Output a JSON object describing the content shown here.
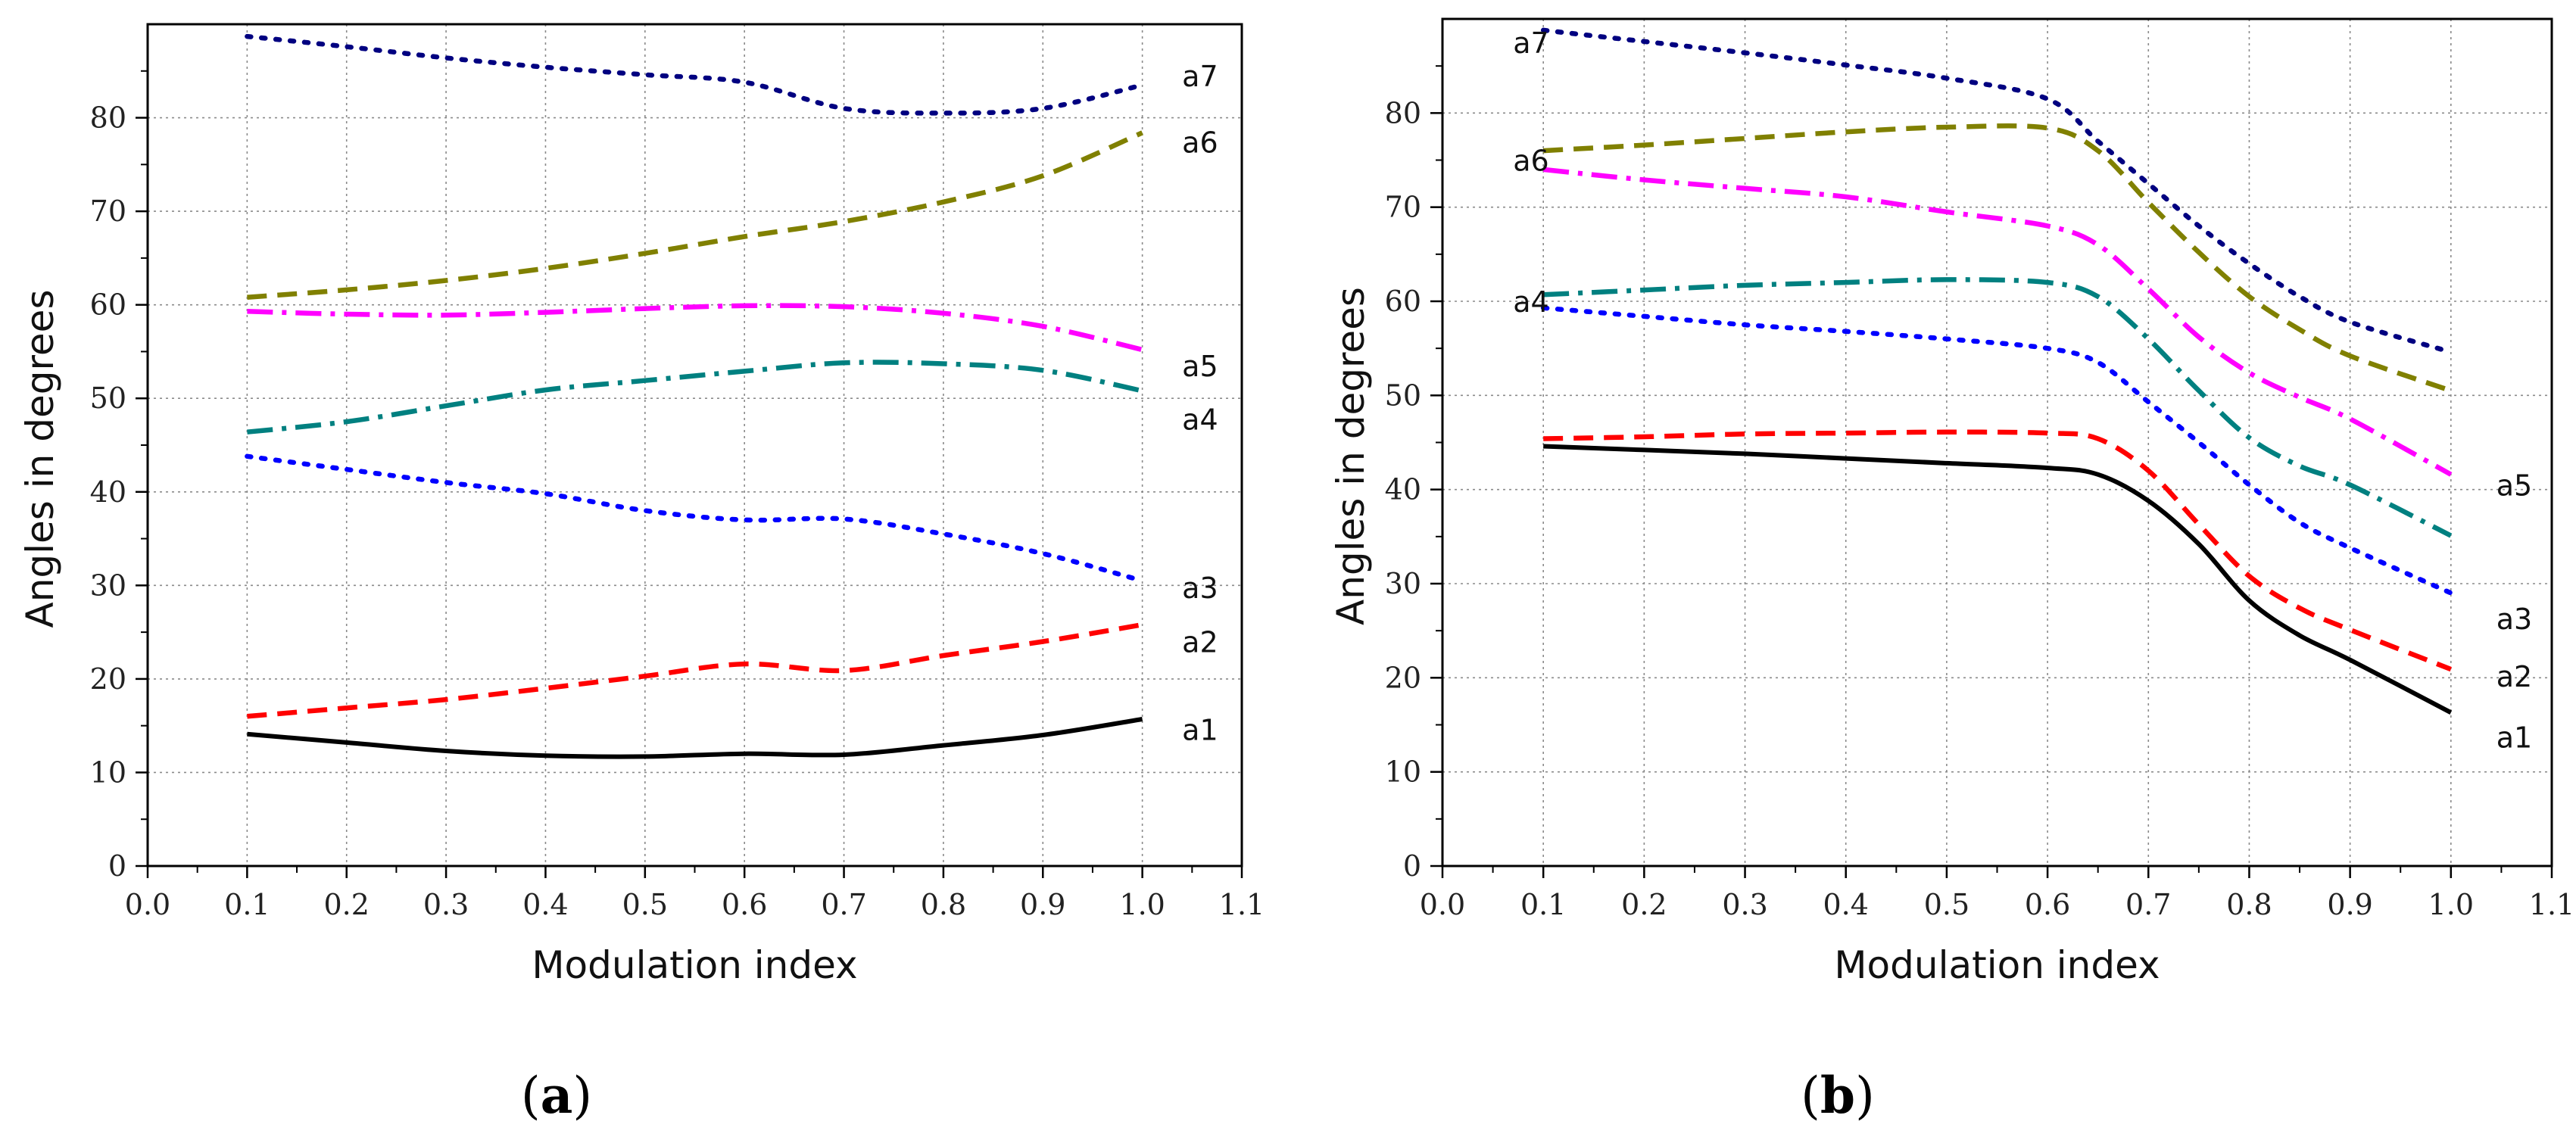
{
  "chart_data": [
    {
      "type": "line",
      "panel": "a",
      "xlabel": "Modulation index",
      "ylabel": "Angles in degrees",
      "xlim": [
        0.0,
        1.1
      ],
      "ylim": [
        0,
        90
      ],
      "xticks": [
        "0.0",
        "0.1",
        "0.2",
        "0.3",
        "0.4",
        "0.5",
        "0.6",
        "0.7",
        "0.8",
        "0.9",
        "1.0",
        "1.1"
      ],
      "yticks": [
        "0",
        "10",
        "20",
        "30",
        "40",
        "50",
        "60",
        "70",
        "80"
      ],
      "grid": true,
      "series": [
        {
          "name": "a1",
          "color": "#000000",
          "style": "solid",
          "x": [
            0.1,
            0.2,
            0.3,
            0.4,
            0.5,
            0.6,
            0.7,
            0.8,
            0.9,
            1.0
          ],
          "y": [
            14.1,
            13.2,
            12.3,
            11.8,
            11.7,
            12.0,
            11.9,
            12.9,
            14.0,
            15.7
          ]
        },
        {
          "name": "a2",
          "color": "#ff0000",
          "style": "dash",
          "x": [
            0.1,
            0.2,
            0.3,
            0.4,
            0.5,
            0.6,
            0.7,
            0.8,
            0.9,
            1.0
          ],
          "y": [
            16.0,
            16.9,
            17.8,
            19.0,
            20.3,
            21.6,
            20.9,
            22.5,
            24.0,
            25.8
          ]
        },
        {
          "name": "a3",
          "color": "#0000ff",
          "style": "dot",
          "x": [
            0.1,
            0.2,
            0.3,
            0.4,
            0.5,
            0.6,
            0.7,
            0.8,
            0.9,
            1.0
          ],
          "y": [
            43.8,
            42.4,
            41.0,
            39.8,
            38.0,
            37.0,
            37.1,
            35.5,
            33.4,
            30.5
          ]
        },
        {
          "name": "a4",
          "color": "#008080",
          "style": "dashdot",
          "x": [
            0.1,
            0.2,
            0.3,
            0.4,
            0.5,
            0.6,
            0.7,
            0.8,
            0.9,
            1.0
          ],
          "y": [
            46.4,
            47.5,
            49.2,
            50.9,
            51.9,
            52.9,
            53.8,
            53.7,
            53.0,
            50.8
          ]
        },
        {
          "name": "a5",
          "color": "#ff00ff",
          "style": "dashdot",
          "x": [
            0.1,
            0.2,
            0.3,
            0.4,
            0.5,
            0.6,
            0.7,
            0.8,
            0.9,
            1.0
          ],
          "y": [
            59.3,
            59.0,
            58.9,
            59.2,
            59.6,
            59.9,
            59.8,
            59.1,
            57.7,
            55.2
          ]
        },
        {
          "name": "a6",
          "color": "#808000",
          "style": "dash",
          "x": [
            0.1,
            0.2,
            0.3,
            0.4,
            0.5,
            0.6,
            0.7,
            0.8,
            0.9,
            1.0
          ],
          "y": [
            60.8,
            61.6,
            62.6,
            63.9,
            65.5,
            67.3,
            68.9,
            71.0,
            73.8,
            78.4
          ]
        },
        {
          "name": "a7",
          "color": "#000080",
          "style": "dot",
          "x": [
            0.1,
            0.2,
            0.3,
            0.4,
            0.5,
            0.6,
            0.7,
            0.8,
            0.9,
            1.0
          ],
          "y": [
            88.7,
            87.6,
            86.4,
            85.4,
            84.6,
            83.8,
            81.0,
            80.5,
            81.0,
            83.5
          ]
        }
      ],
      "annotations": [
        {
          "text": "a7",
          "x": 1.04,
          "y": 84.5
        },
        {
          "text": "a6",
          "x": 1.04,
          "y": 77.4
        },
        {
          "text": "a5",
          "x": 1.04,
          "y": 53.5
        },
        {
          "text": "a4",
          "x": 1.04,
          "y": 47.8
        },
        {
          "text": "a3",
          "x": 1.04,
          "y": 29.8
        },
        {
          "text": "a2",
          "x": 1.04,
          "y": 24.0
        },
        {
          "text": "a1",
          "x": 1.04,
          "y": 14.6
        }
      ],
      "caption": {
        "open": "(",
        "letter": "a",
        "close": ")"
      }
    },
    {
      "type": "line",
      "panel": "b",
      "xlabel": "Modulation index",
      "ylabel": "Angles in degrees",
      "xlim": [
        0.0,
        1.1
      ],
      "ylim": [
        0,
        90
      ],
      "xticks": [
        "0.0",
        "0.1",
        "0.2",
        "0.3",
        "0.4",
        "0.5",
        "0.6",
        "0.7",
        "0.8",
        "0.9",
        "1.0",
        "1.1"
      ],
      "yticks": [
        "0",
        "10",
        "20",
        "30",
        "40",
        "50",
        "60",
        "70",
        "80"
      ],
      "grid": true,
      "series": [
        {
          "name": "a1",
          "color": "#000000",
          "style": "solid",
          "x": [
            0.1,
            0.2,
            0.3,
            0.4,
            0.5,
            0.6,
            0.65,
            0.7,
            0.75,
            0.8,
            0.85,
            0.9,
            1.0
          ],
          "y": [
            44.6,
            44.2,
            43.8,
            43.3,
            42.8,
            42.3,
            41.6,
            38.8,
            34.2,
            28.2,
            24.5,
            21.9,
            16.3
          ]
        },
        {
          "name": "a2",
          "color": "#ff0000",
          "style": "dash",
          "x": [
            0.1,
            0.2,
            0.3,
            0.4,
            0.5,
            0.6,
            0.65,
            0.7,
            0.75,
            0.8,
            0.85,
            0.9,
            1.0
          ],
          "y": [
            45.4,
            45.6,
            45.9,
            46.0,
            46.1,
            46.0,
            45.4,
            42.0,
            36.3,
            30.8,
            27.4,
            25.1,
            20.9
          ]
        },
        {
          "name": "a3",
          "color": "#0000ff",
          "style": "dot",
          "x": [
            0.1,
            0.2,
            0.3,
            0.4,
            0.5,
            0.6,
            0.65,
            0.7,
            0.75,
            0.8,
            0.85,
            0.9,
            1.0
          ],
          "y": [
            59.3,
            58.4,
            57.5,
            56.8,
            56.0,
            55.0,
            53.5,
            49.3,
            45.0,
            40.5,
            36.5,
            33.8,
            29.0
          ]
        },
        {
          "name": "a4",
          "color": "#008080",
          "style": "dashdot",
          "x": [
            0.1,
            0.2,
            0.3,
            0.4,
            0.5,
            0.6,
            0.65,
            0.7,
            0.75,
            0.8,
            0.85,
            0.9,
            1.0
          ],
          "y": [
            60.7,
            61.2,
            61.7,
            62.0,
            62.3,
            62.0,
            60.5,
            56.0,
            50.5,
            45.5,
            42.5,
            40.5,
            35.1
          ]
        },
        {
          "name": "a5",
          "color": "#ff00ff",
          "style": "dashdot",
          "x": [
            0.1,
            0.2,
            0.3,
            0.4,
            0.5,
            0.6,
            0.65,
            0.7,
            0.75,
            0.8,
            0.85,
            0.9,
            1.0
          ],
          "y": [
            74.0,
            72.9,
            72.0,
            71.1,
            69.5,
            68.0,
            66.0,
            61.3,
            56.2,
            52.4,
            49.8,
            47.5,
            41.6
          ]
        },
        {
          "name": "a6",
          "color": "#808000",
          "style": "dash",
          "x": [
            0.1,
            0.2,
            0.3,
            0.4,
            0.5,
            0.6,
            0.65,
            0.7,
            0.75,
            0.8,
            0.85,
            0.9,
            1.0
          ],
          "y": [
            76.0,
            76.6,
            77.3,
            78.0,
            78.5,
            78.4,
            76.0,
            70.5,
            65.2,
            60.5,
            57.0,
            54.2,
            50.5
          ]
        },
        {
          "name": "a7",
          "color": "#000080",
          "style": "dot",
          "x": [
            0.1,
            0.2,
            0.3,
            0.4,
            0.5,
            0.6,
            0.65,
            0.7,
            0.75,
            0.8,
            0.85,
            0.9,
            1.0
          ],
          "y": [
            88.8,
            87.6,
            86.4,
            85.1,
            83.7,
            81.5,
            77.0,
            72.5,
            68.0,
            64.0,
            60.5,
            57.8,
            54.6
          ]
        }
      ],
      "annotations": [
        {
          "text": "a7",
          "x": 0.07,
          "y": 87.5
        },
        {
          "text": "a6",
          "x": 0.07,
          "y": 75.0
        },
        {
          "text": "a4",
          "x": 0.07,
          "y": 60.0
        },
        {
          "text": "a5",
          "x": 1.045,
          "y": 40.5
        },
        {
          "text": "a3",
          "x": 1.045,
          "y": 26.3
        },
        {
          "text": "a2",
          "x": 1.045,
          "y": 20.2
        },
        {
          "text": "a1",
          "x": 1.045,
          "y": 13.7
        }
      ],
      "caption": {
        "open": "(",
        "letter": "b",
        "close": ")"
      }
    }
  ]
}
